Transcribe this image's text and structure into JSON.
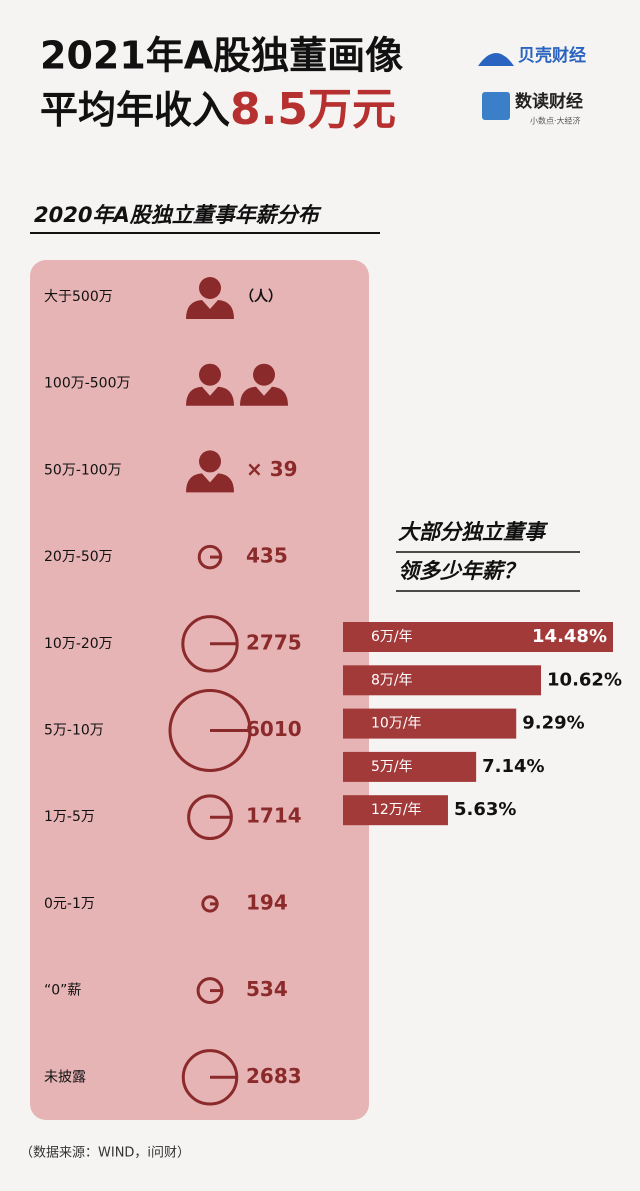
{
  "header": {
    "title_line1": "2021年A股独董画像",
    "title_line2_prefix": "平均年收入",
    "title_line2_highlight": "8.5万元",
    "logo1": "贝壳财经",
    "logo2": "数读财经",
    "logo2_slogan": "小数点·大经济"
  },
  "chart_data": [
    {
      "type": "bubble",
      "title": "2020年A股独立董事年薪分布",
      "unit": "（人）",
      "color": "#8b2a2a",
      "categories": [
        "大于500万",
        "100万-500万",
        "50万-100万",
        "20万-50万",
        "10万-20万",
        "5万-10万",
        "1万-5万",
        "0元-1万",
        "“0”薪",
        "未披露"
      ],
      "values": [
        1,
        2,
        39,
        435,
        2775,
        6010,
        1714,
        194,
        534,
        2683
      ],
      "value_labels": [
        null,
        null,
        "× 39",
        "435",
        "2775",
        "6010",
        "1714",
        "194",
        "534",
        "2683"
      ]
    },
    {
      "type": "bar",
      "orientation": "horizontal",
      "title_lines": [
        "大部分独立董事",
        "领多少年薪？"
      ],
      "color": "#a33a3a",
      "categories": [
        "6万/年",
        "8万/年",
        "10万/年",
        "5万/年",
        "12万/年"
      ],
      "values": [
        14.48,
        10.62,
        9.29,
        7.14,
        5.63
      ],
      "value_labels": [
        "14.48%",
        "10.62%",
        "9.29%",
        "7.14%",
        "5.63%"
      ]
    }
  ],
  "footer": {
    "source": "（数据来源：WIND，i问财）"
  }
}
